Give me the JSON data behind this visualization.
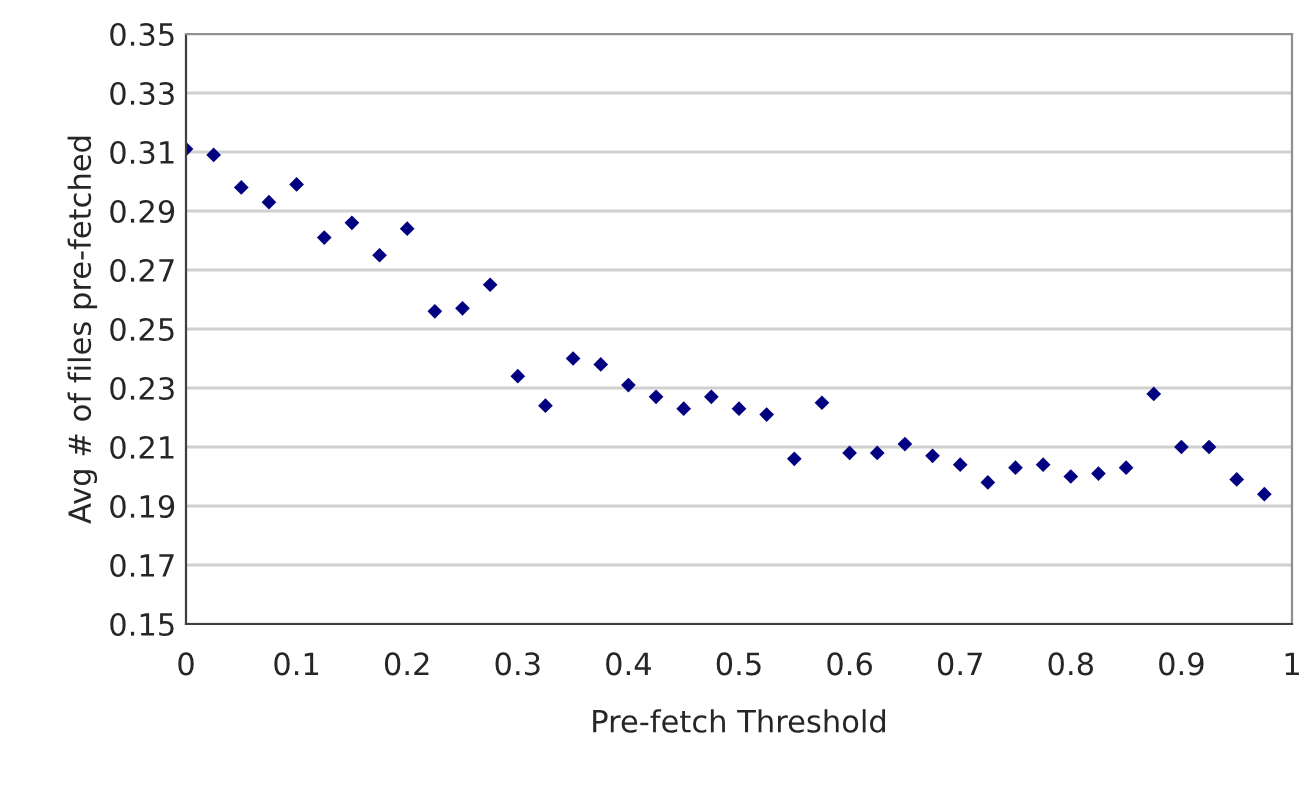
{
  "chart_data": {
    "type": "scatter",
    "xlabel": "Pre-fetch Threshold",
    "ylabel": "Avg # of files pre-fetched",
    "x": [
      0,
      0.025,
      0.05,
      0.075,
      0.1,
      0.125,
      0.15,
      0.175,
      0.2,
      0.225,
      0.25,
      0.275,
      0.3,
      0.325,
      0.35,
      0.375,
      0.4,
      0.425,
      0.45,
      0.475,
      0.5,
      0.525,
      0.55,
      0.575,
      0.6,
      0.625,
      0.65,
      0.675,
      0.7,
      0.725,
      0.75,
      0.775,
      0.8,
      0.825,
      0.85,
      0.875,
      0.9,
      0.925,
      0.95,
      0.975
    ],
    "series": [
      {
        "color": "#000080",
        "values": [
          0.311,
          0.309,
          0.298,
          0.293,
          0.299,
          0.281,
          0.286,
          0.275,
          0.284,
          0.256,
          0.257,
          0.265,
          0.234,
          0.224,
          0.24,
          0.238,
          0.231,
          0.227,
          0.223,
          0.227,
          0.223,
          0.221,
          0.206,
          0.225,
          0.208,
          0.208,
          0.211,
          0.207,
          0.204,
          0.198,
          0.203,
          0.204,
          0.2,
          0.201,
          0.203,
          0.228,
          0.21,
          0.21,
          0.199,
          0.194
        ]
      }
    ],
    "xlim": [
      0,
      1
    ],
    "xticks": [
      0,
      0.1,
      0.2,
      0.3,
      0.4,
      0.5,
      0.6,
      0.7,
      0.8,
      0.9,
      1
    ],
    "ylim": [
      0.15,
      0.35
    ],
    "yticks": [
      {
        "value": 0.15,
        "label": "0.15"
      },
      {
        "value": 0.17,
        "label": "0.17"
      },
      {
        "value": 0.19,
        "label": "0.19"
      },
      {
        "value": 0.21,
        "label": "0.21"
      },
      {
        "value": 0.23,
        "label": "0.23"
      },
      {
        "value": 0.25,
        "label": "0.25"
      },
      {
        "value": 0.27,
        "label": "0.27"
      },
      {
        "value": 0.29,
        "label": "0.29"
      },
      {
        "value": 0.31,
        "label": "0.31"
      },
      {
        "value": 0.33,
        "label": "0.33"
      },
      {
        "value": 0.35,
        "label": "0.35"
      }
    ],
    "grid": "y",
    "marker": "diamond",
    "legend": false
  }
}
